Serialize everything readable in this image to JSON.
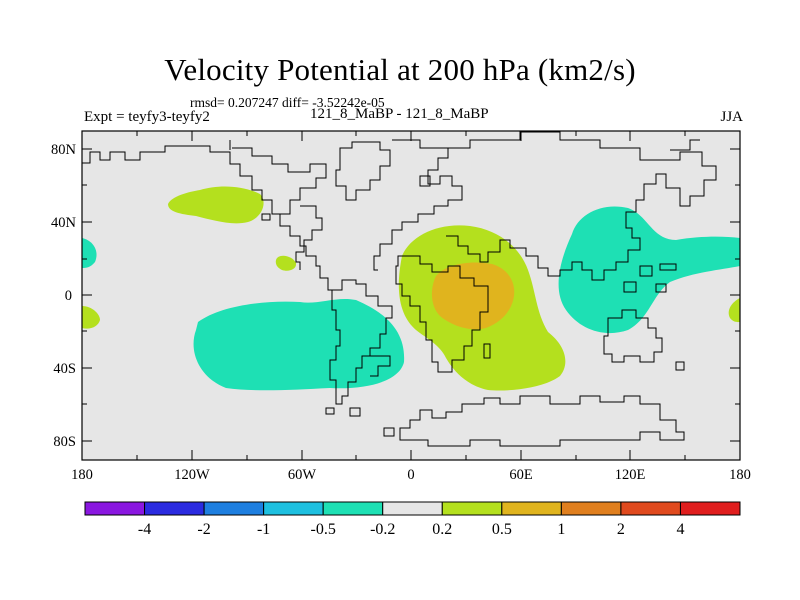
{
  "header": {
    "title": "Velocity Potential at 200 hPa (km2/s)",
    "stats": "rmsd= 0.207247 diff= -3.52242e-05",
    "experiment": "Expt = teyfy3-teyfy2",
    "case": "121_8_MaBP - 121_8_MaBP",
    "season": "JJA"
  },
  "map": {
    "lat_labels": [
      "80N",
      "40N",
      "0",
      "40S",
      "80S"
    ],
    "lon_labels": [
      "180",
      "120W",
      "60W",
      "0",
      "60E",
      "120E",
      "180"
    ],
    "background_color": "#e6e6e6",
    "lat_range": [
      -90,
      90
    ],
    "lon_range": [
      -180,
      180
    ]
  },
  "colorbar": {
    "colors": [
      "#8a17e0",
      "#2b2be0",
      "#1e7fe0",
      "#1ec0e0",
      "#1ee0b4",
      "#e6e6e6",
      "#b4e01e",
      "#e0b41e",
      "#e07f1e",
      "#e04a1e",
      "#e01e1e"
    ],
    "labels": [
      "-4",
      "-2",
      "-1",
      "-0.5",
      "-0.2",
      "0.2",
      "0.5",
      "1",
      "2",
      "4"
    ]
  }
}
